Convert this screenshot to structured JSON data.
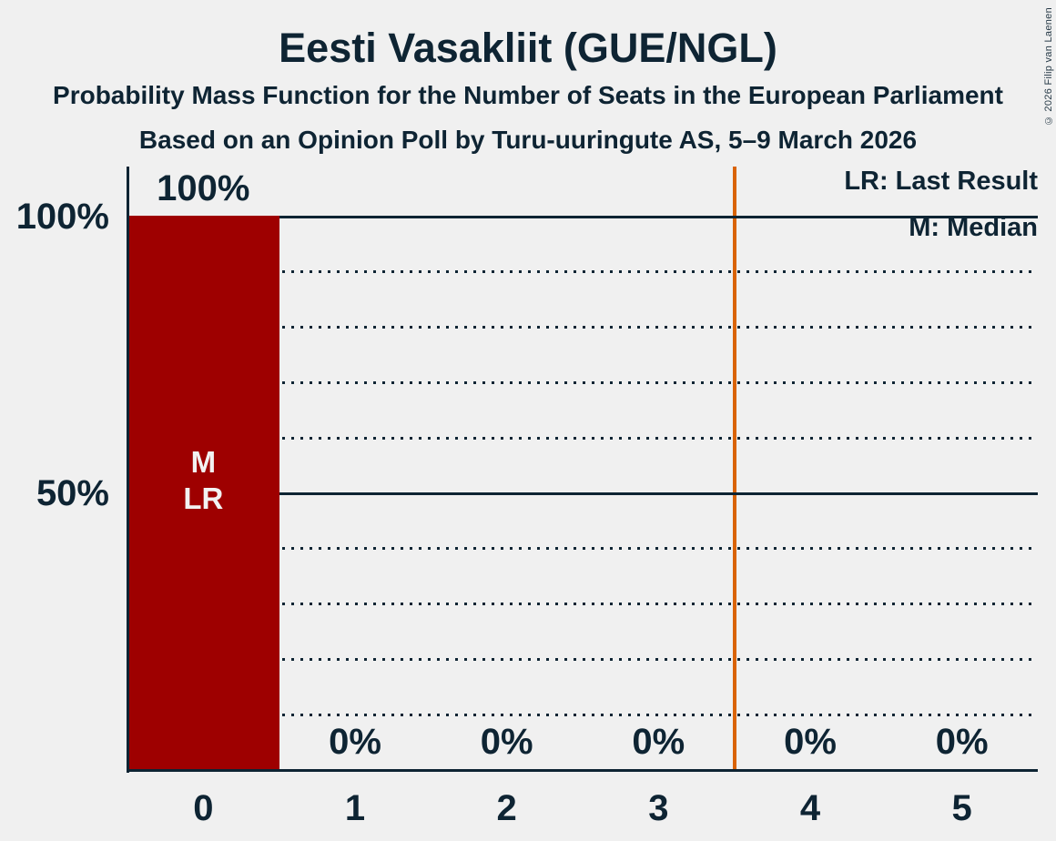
{
  "header": {
    "title": "Eesti Vasakliit (GUE/NGL)",
    "subtitle1": "Probability Mass Function for the Number of Seats in the European Parliament",
    "subtitle2": "Based on an Opinion Poll by Turu-uuringute AS, 5–9 March 2026"
  },
  "copyright": "© 2026 Filip van Laenen",
  "legend": {
    "lr_label": "LR: Last Result",
    "m_label": "M: Median"
  },
  "chart_data": {
    "type": "bar",
    "title": "Eesti Vasakliit (GUE/NGL)",
    "categories": [
      "0",
      "1",
      "2",
      "3",
      "4",
      "5"
    ],
    "values": [
      100,
      0,
      0,
      0,
      0,
      0
    ],
    "value_labels": [
      "100%",
      "0%",
      "0%",
      "0%",
      "0%",
      "0%"
    ],
    "xlabel": "",
    "ylabel": "",
    "ylim": [
      0,
      100
    ],
    "grid": "horizontal",
    "legend_position": "top-right",
    "y_axis": {
      "ticks": [
        {
          "value": 100,
          "label": "100%"
        },
        {
          "value": 50,
          "label": "50%"
        }
      ],
      "solid_lines": [
        100,
        50
      ],
      "dotted_lines": [
        90,
        80,
        70,
        60,
        40,
        30,
        20,
        10
      ]
    },
    "median_category": "0",
    "last_result_category": "0",
    "bar_annotations": [
      {
        "category_index": 0,
        "lines": [
          "M",
          "LR"
        ]
      }
    ],
    "threshold_line_seats": 3.5,
    "colors": {
      "background": "#F0F0F0",
      "ink": "#0E2433",
      "bar": "#9E0000",
      "bar_text": "#F2F2F2",
      "threshold": "#D96306"
    }
  }
}
